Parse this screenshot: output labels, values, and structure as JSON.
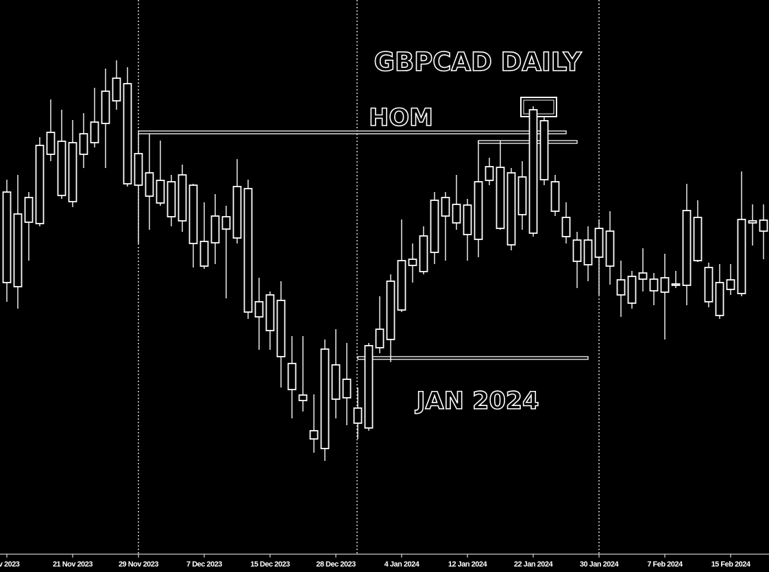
{
  "chart_data": {
    "type": "candlestick",
    "title": "GBPCAD DAILY",
    "annotations": [
      "HOM",
      "JAN 2024"
    ],
    "categories": [
      "ov 2023",
      null,
      null,
      null,
      null,
      null,
      "21 Nov 2023",
      null,
      null,
      null,
      null,
      null,
      "29 Nov 2023",
      null,
      null,
      null,
      null,
      null,
      "7 Dec 2023",
      null,
      null,
      null,
      null,
      null,
      "15 Dec 2023",
      null,
      null,
      null,
      null,
      null,
      "28 Dec 2023",
      null,
      null,
      null,
      null,
      null,
      "4 Jan 2024",
      null,
      null,
      null,
      null,
      null,
      "12 Jan 2024",
      null,
      null,
      null,
      null,
      null,
      "22 Jan 2024",
      null,
      null,
      null,
      null,
      null,
      "30 Jan 2024",
      null,
      null,
      null,
      null,
      null,
      "7 Feb 2024",
      null,
      null,
      null,
      null,
      null,
      "15 Feb 2024",
      null,
      null,
      null
    ],
    "open": [
      1.6922,
      1.6916,
      1.701,
      1.7008,
      1.7109,
      1.7128,
      1.704,
      1.7109,
      1.7126,
      1.7154,
      1.7187,
      1.7212,
      1.7064,
      1.7082,
      1.7038,
      1.7069,
      1.7012,
      1.7064,
      1.6982,
      1.698,
      1.7,
      1.6987,
      1.7059,
      1.6894,
      1.6852,
      1.6896,
      1.6804,
      1.6758,
      1.6694,
      1.668,
      1.6802,
      1.6754,
      1.6717,
      1.671,
      1.6827,
      1.6839,
      1.6882,
      1.6947,
      1.6938,
      1.6966,
      1.7046,
      1.7036,
      1.6992,
      1.6985,
      1.7071,
      1.709,
      1.6977,
      1.7076,
      1.6994,
      1.7158,
      1.7069,
      1.7017,
      1.6984,
      1.6948,
      1.7001,
      1.6997,
      1.6926,
      1.6892,
      1.6927,
      1.6927,
      1.6908,
      1.692,
      1.6918,
      1.7017,
      1.6944,
      1.6874,
      1.6912,
      1.6906,
      1.7012,
      1.6997
    ],
    "high": [
      1.7072,
      1.7079,
      1.7054,
      1.7134,
      1.7189,
      1.7174,
      1.7159,
      1.7169,
      1.7206,
      1.7234,
      1.7246,
      1.7236,
      1.7139,
      1.7139,
      1.7129,
      1.7079,
      1.7094,
      1.7066,
      1.7039,
      1.7051,
      1.7034,
      1.7102,
      1.7072,
      1.6929,
      1.6909,
      1.6924,
      1.6844,
      1.6844,
      1.6759,
      1.6839,
      1.6854,
      1.6834,
      1.6769,
      1.6834,
      1.6902,
      1.6934,
      1.7014,
      1.6979,
      1.7004,
      1.7054,
      1.7054,
      1.7079,
      1.7044,
      1.7129,
      1.7104,
      1.7129,
      1.7089,
      1.7099,
      1.7179,
      1.7164,
      1.7079,
      1.7039,
      1.6996,
      1.7004,
      1.7014,
      1.7026,
      1.6954,
      1.6939,
      1.6972,
      1.6936,
      1.6964,
      1.6939,
      1.7066,
      1.7042,
      1.6951,
      1.6949,
      1.6949,
      1.7084,
      1.7036,
      1.7036
    ],
    "low": [
      1.6894,
      1.6884,
      1.6954,
      1.7004,
      1.7099,
      1.7044,
      1.7032,
      1.7089,
      1.7119,
      1.7089,
      1.7174,
      1.7062,
      1.6979,
      1.6999,
      1.7034,
      1.7004,
      1.6996,
      1.6944,
      1.6942,
      1.6949,
      1.6899,
      1.6979,
      1.6869,
      1.6824,
      1.6824,
      1.6769,
      1.6724,
      1.6734,
      1.6674,
      1.6662,
      1.6724,
      1.6714,
      1.6694,
      1.6706,
      1.6819,
      1.6806,
      1.6879,
      1.6922,
      1.6934,
      1.6949,
      1.6954,
      1.6999,
      1.6954,
      1.6959,
      1.7064,
      1.6999,
      1.6969,
      1.6999,
      1.6989,
      1.7064,
      1.7019,
      1.6979,
      1.6914,
      1.6924,
      1.6904,
      1.6919,
      1.6872,
      1.6884,
      1.6909,
      1.6889,
      1.6839,
      1.6914,
      1.6889,
      1.6952,
      1.6886,
      1.6869,
      1.6904,
      1.6902,
      1.6976,
      1.6956
    ],
    "close": [
      1.7054,
      1.7022,
      1.7046,
      1.7122,
      1.7141,
      1.7049,
      1.7126,
      1.7139,
      1.7156,
      1.7201,
      1.722,
      1.7066,
      1.711,
      1.7048,
      1.7071,
      1.7018,
      1.7079,
      1.6979,
      1.6946,
      1.7019,
      1.7018,
      1.7062,
      1.6879,
      1.6872,
      1.6904,
      1.6814,
      1.6766,
      1.675,
      1.6706,
      1.6825,
      1.6752,
      1.6781,
      1.6739,
      1.683,
      1.6854,
      1.6924,
      1.6954,
      1.6956,
      1.699,
      1.7042,
      1.7019,
      1.7009,
      1.7035,
      1.7069,
      1.7091,
      1.7001,
      1.7082,
      1.7021,
      1.7174,
      1.7072,
      1.7026,
      1.6989,
      1.6953,
      1.6984,
      1.6959,
      1.6946,
      1.6904,
      1.6931,
      1.6936,
      1.691,
      1.6929,
      1.6918,
      1.7027,
      1.6954,
      1.6894,
      1.6922,
      1.6926,
      1.7014,
      1.7009,
      1.7013
    ],
    "levels": [
      {
        "value": 1.7141,
        "from": 12,
        "to": 51
      },
      {
        "value": 1.7127,
        "from": 43,
        "to": 52
      },
      {
        "value": 1.6812,
        "from": 32,
        "to": 53
      }
    ],
    "ylim": [
      1.6526,
      1.7334
    ],
    "color": "#ffffff"
  }
}
